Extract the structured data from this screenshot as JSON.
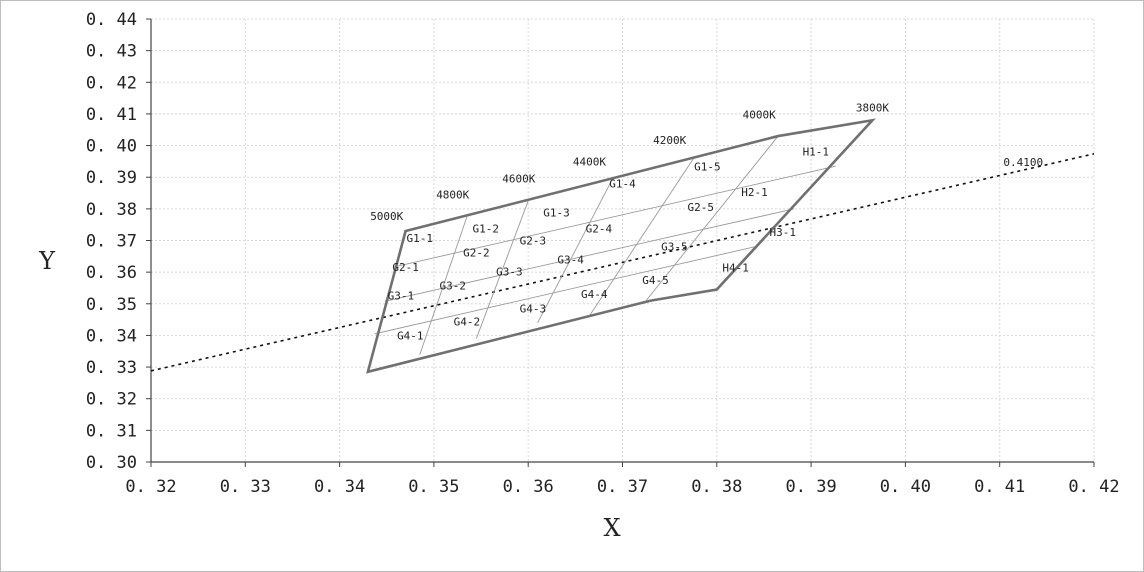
{
  "chart_data": {
    "type": "scatter",
    "xlabel": "X",
    "ylabel": "Y",
    "xlim": [
      0.32,
      0.42
    ],
    "ylim": [
      0.3,
      0.44
    ],
    "xticks": [
      "0.32",
      "0.33",
      "0.34",
      "0.35",
      "0.36",
      "0.37",
      "0.38",
      "0.39",
      "0.40",
      "0.41",
      "0.42"
    ],
    "yticks": [
      "0.30",
      "0.31",
      "0.32",
      "0.33",
      "0.34",
      "0.35",
      "0.36",
      "0.37",
      "0.38",
      "0.39",
      "0.40",
      "0.41",
      "0.42",
      "0.43",
      "0.44"
    ],
    "grid": true,
    "bin_outline": [
      [
        0.347,
        0.373
      ],
      [
        0.3865,
        0.403
      ],
      [
        0.3965,
        0.408
      ],
      [
        0.38,
        0.3545
      ],
      [
        0.373,
        0.351
      ],
      [
        0.343,
        0.3285
      ]
    ],
    "temperature_labels": [
      {
        "text": "5000K",
        "x": 0.345,
        "y": 0.3765
      },
      {
        "text": "4800K",
        "x": 0.352,
        "y": 0.3833
      },
      {
        "text": "4600K",
        "x": 0.359,
        "y": 0.3883
      },
      {
        "text": "4400K",
        "x": 0.3665,
        "y": 0.3937
      },
      {
        "text": "4200K",
        "x": 0.375,
        "y": 0.4005
      },
      {
        "text": "4000K",
        "x": 0.3845,
        "y": 0.4085
      },
      {
        "text": "3800K",
        "x": 0.3965,
        "y": 0.4108
      }
    ],
    "bin_lines": [
      [
        [
          0.3535,
          0.3775
        ],
        [
          0.3485,
          0.3339
        ]
      ],
      [
        [
          0.36,
          0.3825
        ],
        [
          0.3545,
          0.339
        ]
      ],
      [
        [
          0.369,
          0.3898
        ],
        [
          0.361,
          0.344
        ]
      ],
      [
        [
          0.3775,
          0.3958
        ],
        [
          0.3665,
          0.3462
        ]
      ],
      [
        [
          0.3865,
          0.403
        ],
        [
          0.3725,
          0.351
        ]
      ],
      [
        [
          0.346,
          0.3618
        ],
        [
          0.3926,
          0.3935
        ]
      ],
      [
        [
          0.3448,
          0.3508
        ],
        [
          0.3882,
          0.38
        ]
      ],
      [
        [
          0.3437,
          0.3405
        ],
        [
          0.384,
          0.368
        ]
      ]
    ],
    "bin_labels": [
      {
        "text": "G1-1",
        "x": 0.3485,
        "y": 0.3695
      },
      {
        "text": "G1-2",
        "x": 0.3555,
        "y": 0.3726
      },
      {
        "text": "G1-3",
        "x": 0.363,
        "y": 0.3776
      },
      {
        "text": "G1-4",
        "x": 0.37,
        "y": 0.3868
      },
      {
        "text": "G1-5",
        "x": 0.379,
        "y": 0.3921
      },
      {
        "text": "H1-1",
        "x": 0.3905,
        "y": 0.3969
      },
      {
        "text": "G2-1",
        "x": 0.347,
        "y": 0.3604
      },
      {
        "text": "G2-2",
        "x": 0.3545,
        "y": 0.365
      },
      {
        "text": "G2-3",
        "x": 0.3605,
        "y": 0.3687
      },
      {
        "text": "G2-4",
        "x": 0.3675,
        "y": 0.3726
      },
      {
        "text": "G2-5",
        "x": 0.3783,
        "y": 0.3793
      },
      {
        "text": "H2-1",
        "x": 0.384,
        "y": 0.3841
      },
      {
        "text": "G3-1",
        "x": 0.3465,
        "y": 0.3513
      },
      {
        "text": "G3-2",
        "x": 0.352,
        "y": 0.3545
      },
      {
        "text": "G3-3",
        "x": 0.358,
        "y": 0.359
      },
      {
        "text": "G3-4",
        "x": 0.3645,
        "y": 0.3627
      },
      {
        "text": "G3-5",
        "x": 0.3755,
        "y": 0.3668
      },
      {
        "text": "H3-1",
        "x": 0.387,
        "y": 0.3715
      },
      {
        "text": "G4-1",
        "x": 0.3475,
        "y": 0.3387
      },
      {
        "text": "G4-2",
        "x": 0.3535,
        "y": 0.3432
      },
      {
        "text": "G4-3",
        "x": 0.3605,
        "y": 0.3472
      },
      {
        "text": "G4-4",
        "x": 0.367,
        "y": 0.3518
      },
      {
        "text": "G4-5",
        "x": 0.3735,
        "y": 0.3563
      },
      {
        "text": "H4-1",
        "x": 0.382,
        "y": 0.3602
      }
    ],
    "dotted_line": {
      "points": [
        [
          0.32,
          0.3288
        ],
        [
          0.42,
          0.3974
        ]
      ],
      "label": "0.4100",
      "label_x": 0.4125,
      "label_y": 0.3935
    }
  }
}
